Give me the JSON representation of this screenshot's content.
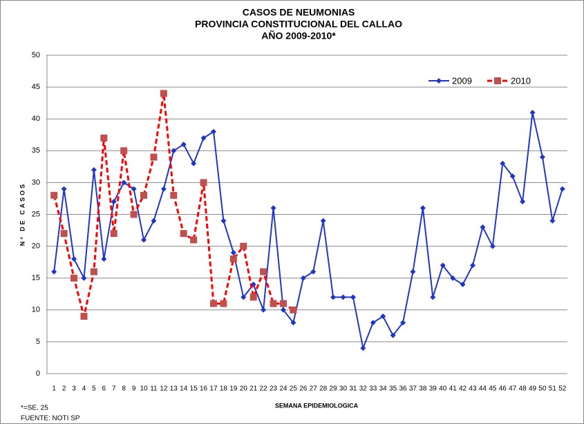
{
  "chart_data": {
    "type": "line",
    "title": [
      "CASOS DE NEUMONIAS",
      "PROVINCIA CONSTITUCIONAL DEL CALLAO",
      "AÑO 2009-2010*"
    ],
    "x_label": "SEMANA EPIDEMIOLOGICA",
    "y_label": "Nº DE CASOS",
    "footnotes": [
      "*=SE. 25",
      "FUENTE: NOTI  SP"
    ],
    "categories": [
      1,
      2,
      3,
      4,
      5,
      6,
      7,
      8,
      9,
      10,
      11,
      12,
      13,
      14,
      15,
      16,
      17,
      18,
      19,
      20,
      21,
      22,
      23,
      24,
      25,
      26,
      27,
      28,
      29,
      30,
      31,
      32,
      33,
      34,
      35,
      36,
      37,
      38,
      39,
      40,
      41,
      42,
      43,
      44,
      45,
      46,
      47,
      48,
      49,
      50,
      51,
      52
    ],
    "series": [
      {
        "name": "2009",
        "color": "#1f35c8",
        "marker": "diamond",
        "marker_color": "#1f35c8",
        "dashed": false,
        "values": [
          16,
          29,
          18,
          15,
          32,
          18,
          27,
          30,
          29,
          21,
          24,
          29,
          35,
          36,
          33,
          37,
          38,
          24,
          19,
          12,
          14,
          10,
          26,
          10,
          8,
          15,
          16,
          24,
          12,
          12,
          12,
          4,
          8,
          9,
          6,
          8,
          16,
          26,
          12,
          17,
          15,
          14,
          17,
          23,
          20,
          33,
          31,
          27,
          41,
          34,
          24,
          29
        ]
      },
      {
        "name": "2010",
        "color": "#ff0000",
        "marker": "square",
        "marker_color": "#c0504d",
        "dashed": true,
        "values": [
          28,
          22,
          15,
          9,
          16,
          37,
          22,
          35,
          25,
          28,
          34,
          44,
          28,
          22,
          21,
          30,
          11,
          11,
          18,
          20,
          12,
          16,
          11,
          11,
          10,
          null,
          null,
          null,
          null,
          null,
          null,
          null,
          null,
          null,
          null,
          null,
          null,
          null,
          null,
          null,
          null,
          null,
          null,
          null,
          null,
          null,
          null,
          null,
          null,
          null,
          null,
          null
        ]
      }
    ],
    "ylim": [
      0,
      50
    ],
    "yticks": [
      0,
      5,
      10,
      15,
      20,
      25,
      30,
      35,
      40,
      45,
      50
    ],
    "grid": true,
    "legend": "upper right"
  }
}
